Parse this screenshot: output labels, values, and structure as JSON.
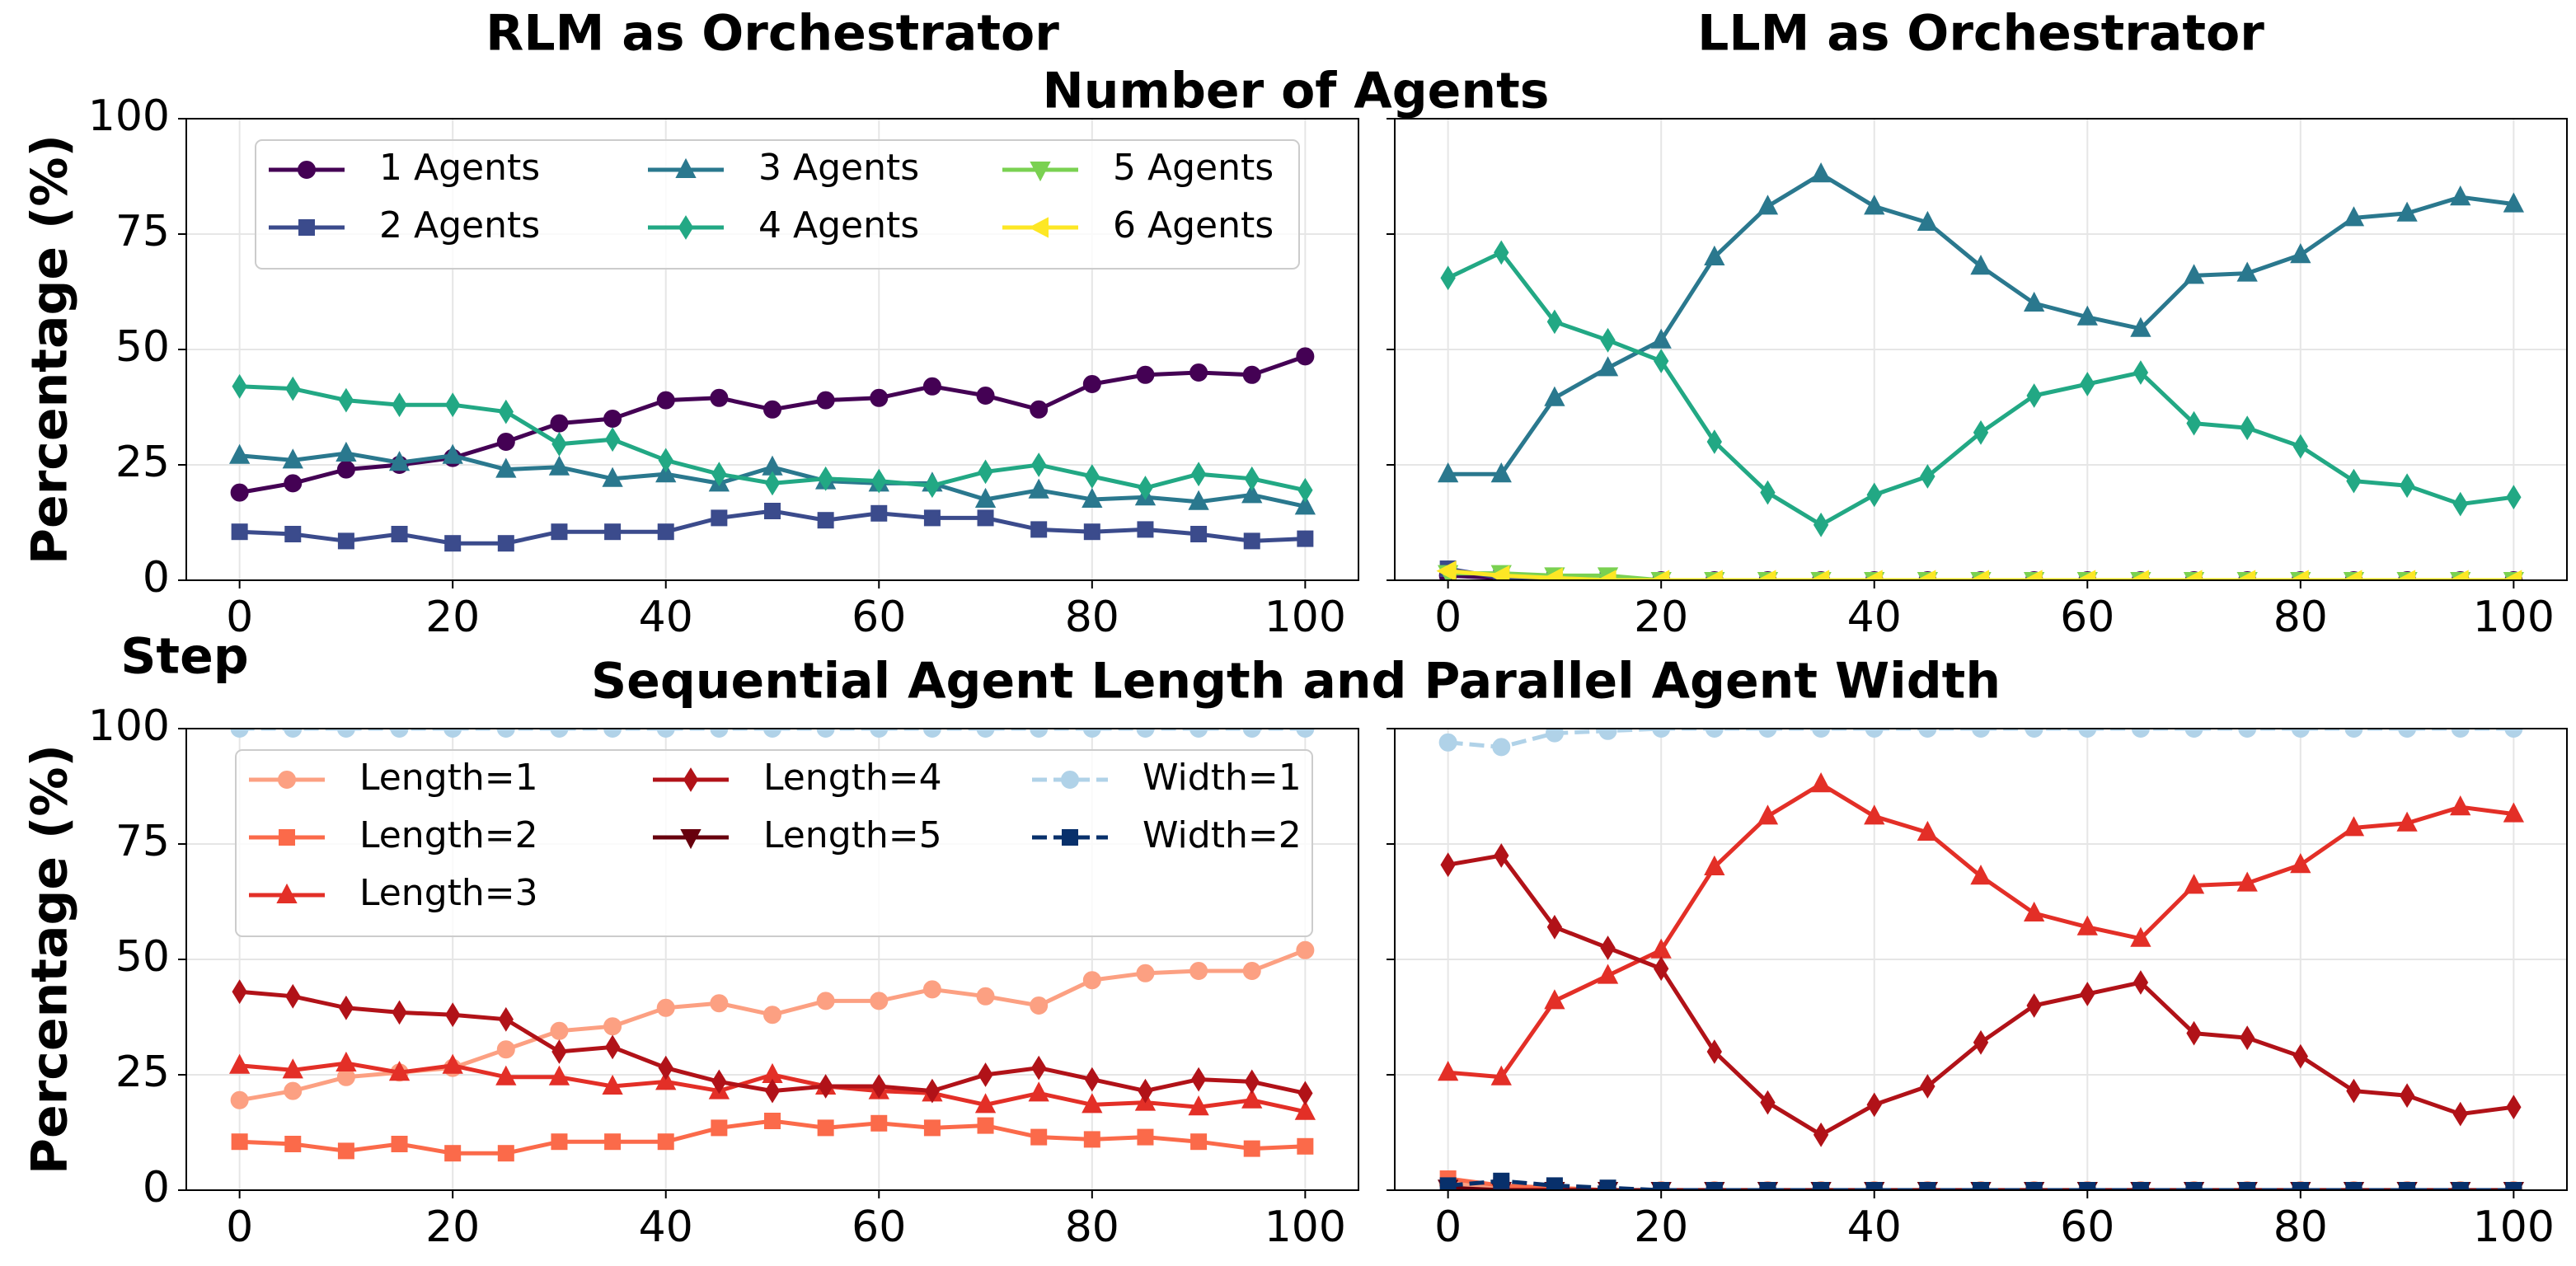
{
  "figure": {
    "row_titles": [
      "Number of Agents",
      "Sequential Agent Length and Parallel Agent Width"
    ],
    "xlabel": "Step"
  },
  "chart_data": [
    {
      "type": "line",
      "title": "RLM as Orchestrator",
      "ylabel": "Percentage (%)",
      "x": [
        0,
        5,
        10,
        15,
        20,
        25,
        30,
        35,
        40,
        45,
        50,
        55,
        60,
        65,
        70,
        75,
        80,
        85,
        90,
        95,
        100
      ],
      "xlim": [
        -5,
        105
      ],
      "ylim": [
        0,
        100
      ],
      "xticks": [
        0,
        20,
        40,
        60,
        80,
        100
      ],
      "yticks": [
        0,
        25,
        50,
        75,
        100
      ],
      "show_ytick_labels": true,
      "grid": true,
      "legend": "upper left",
      "legend_columns": 3,
      "series": [
        {
          "name": "1 Agents",
          "color": "#440154",
          "marker": "circle",
          "dash": "solid",
          "values": [
            19,
            21,
            24,
            25,
            26.5,
            30,
            34,
            35,
            39,
            39.5,
            37,
            39,
            39.5,
            42,
            40,
            37,
            42.5,
            44.5,
            45,
            44.5,
            48.5
          ]
        },
        {
          "name": "2 Agents",
          "color": "#3b4b8c",
          "marker": "square",
          "dash": "solid",
          "values": [
            10.5,
            10,
            8.5,
            10,
            8,
            8,
            10.5,
            10.5,
            10.5,
            13.5,
            15,
            13,
            14.5,
            13.5,
            13.5,
            11,
            10.5,
            11,
            10,
            8.5,
            9
          ]
        },
        {
          "name": "3 Agents",
          "color": "#2a788e",
          "marker": "triangle-up",
          "dash": "solid",
          "values": [
            27,
            26,
            27.5,
            25.5,
            27,
            24,
            24.5,
            22,
            23,
            21,
            24.5,
            21.5,
            21,
            21,
            17.5,
            19.5,
            17.5,
            18,
            17,
            18.5,
            16
          ]
        },
        {
          "name": "4 Agents",
          "color": "#22a884",
          "marker": "diamond",
          "dash": "solid",
          "values": [
            42,
            41.5,
            39,
            38,
            38,
            36.5,
            29.5,
            30.5,
            26,
            23,
            21,
            22,
            21.5,
            20.5,
            23.5,
            25,
            22.5,
            20,
            23,
            22,
            19.5
          ]
        },
        {
          "name": "5 Agents",
          "color": "#7ad151",
          "marker": "triangle-down",
          "dash": "solid",
          "values": [
            null,
            null,
            null,
            null,
            null,
            null,
            null,
            null,
            null,
            null,
            null,
            null,
            null,
            null,
            null,
            null,
            null,
            null,
            null,
            null,
            null
          ]
        },
        {
          "name": "6 Agents",
          "color": "#fde725",
          "marker": "triangle-left",
          "dash": "solid",
          "values": [
            null,
            null,
            null,
            null,
            null,
            null,
            null,
            null,
            null,
            null,
            null,
            null,
            null,
            null,
            null,
            null,
            null,
            null,
            null,
            null,
            null
          ]
        }
      ]
    },
    {
      "type": "line",
      "title": "LLM as Orchestrator",
      "x": [
        0,
        5,
        10,
        15,
        20,
        25,
        30,
        35,
        40,
        45,
        50,
        55,
        60,
        65,
        70,
        75,
        80,
        85,
        90,
        95,
        100
      ],
      "xlim": [
        -5,
        105
      ],
      "ylim": [
        0,
        100
      ],
      "xticks": [
        0,
        20,
        40,
        60,
        80,
        100
      ],
      "yticks": [
        0,
        25,
        50,
        75,
        100
      ],
      "show_ytick_labels": false,
      "grid": true,
      "series": [
        {
          "color": "#440154",
          "marker": "circle",
          "dash": "solid",
          "values": [
            1,
            0.5,
            0,
            0,
            0,
            0,
            0,
            0,
            0,
            0,
            0,
            0,
            0,
            0,
            0,
            0,
            0,
            0,
            0,
            0,
            0
          ]
        },
        {
          "color": "#3b4b8c",
          "marker": "square",
          "dash": "solid",
          "values": [
            2.5,
            0.5,
            0,
            0,
            0,
            0,
            0,
            0,
            0,
            0,
            0,
            0,
            0,
            0,
            0,
            0,
            0,
            0,
            0,
            0,
            0
          ]
        },
        {
          "color": "#2a788e",
          "marker": "triangle-up",
          "dash": "solid",
          "values": [
            23,
            23,
            39.5,
            46,
            52,
            70,
            81,
            88,
            81,
            77.5,
            68,
            60,
            57,
            54.5,
            66,
            66.5,
            70.5,
            78.5,
            79.5,
            83,
            81.5
          ]
        },
        {
          "color": "#22a884",
          "marker": "diamond",
          "dash": "solid",
          "values": [
            65.5,
            71,
            56,
            52,
            47.5,
            30,
            19,
            12,
            18.5,
            22.5,
            32,
            40,
            42.5,
            45,
            34,
            33,
            29,
            21.5,
            20.5,
            16.5,
            18
          ]
        },
        {
          "color": "#7ad151",
          "marker": "triangle-down",
          "dash": "solid",
          "values": [
            1.5,
            1.5,
            1,
            1,
            0,
            0,
            0,
            0,
            0,
            0,
            0,
            0,
            0,
            0,
            0,
            0,
            0,
            0,
            0,
            0,
            0
          ]
        },
        {
          "color": "#fde725",
          "marker": "triangle-left",
          "dash": "solid",
          "values": [
            2,
            1,
            0.5,
            0,
            0,
            0,
            0,
            0,
            0,
            0,
            0,
            0,
            0,
            0,
            0,
            0,
            0,
            0,
            0,
            0,
            0
          ]
        }
      ]
    },
    {
      "type": "line",
      "ylabel": "Percentage (%)",
      "x": [
        0,
        5,
        10,
        15,
        20,
        25,
        30,
        35,
        40,
        45,
        50,
        55,
        60,
        65,
        70,
        75,
        80,
        85,
        90,
        95,
        100
      ],
      "xlim": [
        -5,
        105
      ],
      "ylim": [
        0,
        100
      ],
      "xticks": [
        0,
        20,
        40,
        60,
        80,
        100
      ],
      "yticks": [
        0,
        25,
        50,
        75,
        100
      ],
      "show_ytick_labels": true,
      "grid": true,
      "legend": "upper left",
      "legend_columns": 3,
      "series": [
        {
          "name": "Length=1",
          "color": "#fca082",
          "marker": "circle",
          "dash": "solid",
          "values": [
            19.5,
            21.5,
            24.5,
            25.5,
            26.5,
            30.5,
            34.5,
            35.5,
            39.5,
            40.5,
            38,
            41,
            41,
            43.5,
            42,
            40,
            45.5,
            47,
            47.5,
            47.5,
            52
          ]
        },
        {
          "name": "Length=2",
          "color": "#fb6a4a",
          "marker": "square",
          "dash": "solid",
          "values": [
            10.5,
            10,
            8.5,
            10,
            8,
            8,
            10.5,
            10.5,
            10.5,
            13.5,
            15,
            13.5,
            14.5,
            13.5,
            14,
            11.5,
            11,
            11.5,
            10.5,
            9,
            9.5
          ]
        },
        {
          "name": "Length=3",
          "color": "#e32f27",
          "marker": "triangle-up",
          "dash": "solid",
          "values": [
            27,
            26,
            27.5,
            25.5,
            27,
            24.5,
            24.5,
            22.5,
            23.5,
            21.5,
            25,
            22.5,
            21.5,
            21,
            18.5,
            21,
            18.5,
            19,
            18,
            19.5,
            17
          ]
        },
        {
          "name": "Length=4",
          "color": "#b11218",
          "marker": "diamond",
          "dash": "solid",
          "values": [
            43,
            42,
            39.5,
            38.5,
            38,
            37,
            30,
            31,
            26.5,
            23.5,
            21.5,
            22.5,
            22.5,
            21.5,
            25,
            26.5,
            24,
            21.5,
            24,
            23.5,
            21
          ]
        },
        {
          "name": "Length=5",
          "color": "#67000d",
          "marker": "triangle-down",
          "dash": "solid",
          "values": [
            null,
            null,
            null,
            null,
            null,
            null,
            null,
            null,
            null,
            null,
            null,
            null,
            null,
            null,
            null,
            null,
            null,
            null,
            null,
            null,
            null
          ]
        },
        {
          "name": "Width=1",
          "color": "#b0d2e8",
          "marker": "circle",
          "dash": "dashed",
          "values": [
            100,
            100,
            100,
            100,
            100,
            100,
            100,
            100,
            100,
            100,
            100,
            100,
            100,
            100,
            100,
            100,
            100,
            100,
            100,
            100,
            100
          ]
        },
        {
          "name": "Width=2",
          "color": "#08306b",
          "marker": "square",
          "dash": "dashed",
          "values": [
            null,
            null,
            null,
            null,
            null,
            null,
            null,
            null,
            null,
            null,
            null,
            null,
            null,
            null,
            null,
            null,
            null,
            null,
            null,
            null,
            null
          ]
        }
      ]
    },
    {
      "type": "line",
      "x": [
        0,
        5,
        10,
        15,
        20,
        25,
        30,
        35,
        40,
        45,
        50,
        55,
        60,
        65,
        70,
        75,
        80,
        85,
        90,
        95,
        100
      ],
      "xlim": [
        -5,
        105
      ],
      "ylim": [
        0,
        100
      ],
      "xticks": [
        0,
        20,
        40,
        60,
        80,
        100
      ],
      "yticks": [
        0,
        25,
        50,
        75,
        100
      ],
      "show_ytick_labels": false,
      "grid": true,
      "series": [
        {
          "color": "#fca082",
          "marker": "circle",
          "dash": "solid",
          "values": [
            1.5,
            0.5,
            0,
            0,
            0,
            0,
            0,
            0,
            0,
            0,
            0,
            0,
            0,
            0,
            0,
            0,
            0,
            0,
            0,
            0,
            0
          ]
        },
        {
          "color": "#fb6a4a",
          "marker": "square",
          "dash": "solid",
          "values": [
            2.5,
            1,
            0.5,
            0,
            0,
            0,
            0,
            0,
            0,
            0,
            0,
            0,
            0,
            0,
            0,
            0,
            0,
            0,
            0,
            0,
            0
          ]
        },
        {
          "color": "#e32f27",
          "marker": "triangle-up",
          "dash": "solid",
          "values": [
            25.5,
            24.5,
            41,
            46.5,
            52,
            70,
            81,
            88,
            81,
            77.5,
            68,
            60,
            57,
            54.5,
            66,
            66.5,
            70.5,
            78.5,
            79.5,
            83,
            81.5
          ]
        },
        {
          "color": "#b11218",
          "marker": "diamond",
          "dash": "solid",
          "values": [
            70.5,
            72.5,
            57,
            52.5,
            48,
            30,
            19,
            12,
            18.5,
            22.5,
            32,
            40,
            42.5,
            45,
            34,
            33,
            29,
            21.5,
            20.5,
            16.5,
            18
          ]
        },
        {
          "color": "#67000d",
          "marker": "triangle-down",
          "dash": "solid",
          "values": [
            0.5,
            0,
            0,
            0,
            0,
            0,
            0,
            0,
            0,
            0,
            0,
            0,
            0,
            0,
            0,
            0,
            0,
            0,
            0,
            0,
            0
          ]
        },
        {
          "color": "#b0d2e8",
          "marker": "circle",
          "dash": "dashed",
          "values": [
            97,
            96,
            99,
            99.5,
            100,
            100,
            100,
            100,
            100,
            100,
            100,
            100,
            100,
            100,
            100,
            100,
            100,
            100,
            100,
            100,
            100
          ]
        },
        {
          "color": "#08306b",
          "marker": "square",
          "dash": "dashed",
          "values": [
            1,
            2,
            1,
            0.5,
            0,
            0,
            0,
            0,
            0,
            0,
            0,
            0,
            0,
            0,
            0,
            0,
            0,
            0,
            0,
            0,
            0
          ]
        }
      ]
    }
  ]
}
